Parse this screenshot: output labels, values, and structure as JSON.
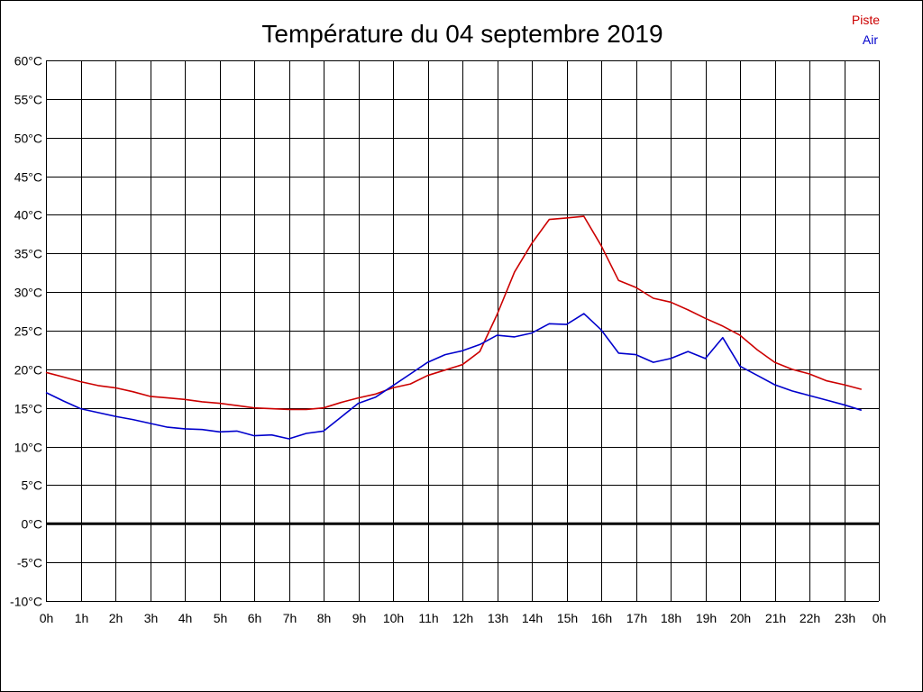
{
  "chart_data": {
    "type": "line",
    "title": "Température du 04 septembre 2019",
    "xlabel": "",
    "ylabel": "",
    "x_tick_labels": [
      "0h",
      "1h",
      "2h",
      "3h",
      "4h",
      "5h",
      "6h",
      "7h",
      "8h",
      "9h",
      "10h",
      "11h",
      "12h",
      "13h",
      "14h",
      "15h",
      "16h",
      "17h",
      "18h",
      "19h",
      "20h",
      "21h",
      "22h",
      "23h",
      "0h"
    ],
    "y_tick_labels": [
      "60°C",
      "55°C",
      "50°C",
      "45°C",
      "40°C",
      "35°C",
      "30°C",
      "25°C",
      "20°C",
      "15°C",
      "10°C",
      "5°C",
      "0°C",
      "-5°C",
      "-10°C"
    ],
    "ylim": [
      -10,
      60
    ],
    "xlim": [
      0,
      24
    ],
    "grid": true,
    "zero_line": true,
    "legend_position": "top-right",
    "series": [
      {
        "name": "Piste",
        "color": "#cc0000",
        "x": [
          0,
          0.5,
          1,
          1.5,
          2,
          2.5,
          3,
          3.5,
          4,
          4.5,
          5,
          5.5,
          6,
          6.5,
          7,
          7.5,
          8,
          8.5,
          9,
          9.5,
          10,
          10.5,
          11,
          11.5,
          12,
          12.5,
          13,
          13.5,
          14,
          14.5,
          15,
          15.5,
          16,
          16.5,
          17,
          17.5,
          18,
          18.5,
          19,
          19.5,
          20,
          20.5,
          21,
          21.5,
          22,
          22.5,
          23,
          23.5
        ],
        "values": [
          19.6,
          19.0,
          18.4,
          17.9,
          17.6,
          17.1,
          16.5,
          16.3,
          16.1,
          15.8,
          15.6,
          15.3,
          15.0,
          14.9,
          14.8,
          14.8,
          15.0,
          15.7,
          16.3,
          16.8,
          17.6,
          18.1,
          19.2,
          19.9,
          20.6,
          22.3,
          27.1,
          32.6,
          36.3,
          39.4,
          39.6,
          39.8,
          36.0,
          31.5,
          30.6,
          29.2,
          28.7,
          27.7,
          26.6,
          25.6,
          24.4,
          22.5,
          20.9,
          20.0,
          19.4,
          18.5,
          18.0,
          17.4
        ]
      },
      {
        "name": "Air",
        "color": "#0000cc",
        "x": [
          0,
          0.5,
          1,
          1.5,
          2,
          2.5,
          3,
          3.5,
          4,
          4.5,
          5,
          5.5,
          6,
          6.5,
          7,
          7.5,
          8,
          8.5,
          9,
          9.5,
          10,
          10.5,
          11,
          11.5,
          12,
          12.5,
          13,
          13.5,
          14,
          14.5,
          15,
          15.5,
          16,
          16.5,
          17,
          17.5,
          18,
          18.5,
          19,
          19.5,
          20,
          20.5,
          21,
          21.5,
          22,
          22.5,
          23,
          23.5
        ],
        "values": [
          17.0,
          15.9,
          14.9,
          14.4,
          13.9,
          13.5,
          13.0,
          12.5,
          12.3,
          12.2,
          11.9,
          12.0,
          11.4,
          11.5,
          11.0,
          11.7,
          12.0,
          13.8,
          15.6,
          16.4,
          17.9,
          19.4,
          20.9,
          21.9,
          22.4,
          23.2,
          24.4,
          24.2,
          24.7,
          25.9,
          25.8,
          27.2,
          25.1,
          22.1,
          21.9,
          20.9,
          21.4,
          22.3,
          21.4,
          24.1,
          20.4,
          19.2,
          18.0,
          17.2,
          16.6,
          16.0,
          15.4,
          14.7
        ]
      }
    ]
  }
}
